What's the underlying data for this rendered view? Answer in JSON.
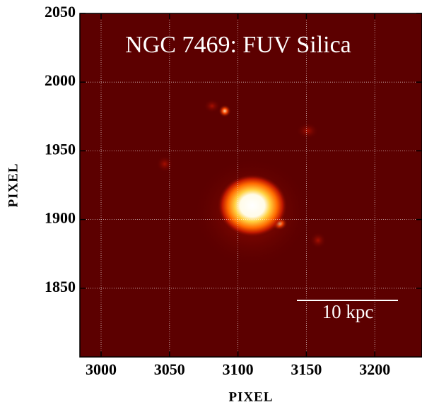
{
  "chart_data": {
    "type": "image",
    "title": "NGC 7469: FUV Silica",
    "xlabel": "PIXEL",
    "ylabel": "PIXEL",
    "xlim": [
      2984.5,
      3234.5
    ],
    "ylim": [
      1800,
      2050
    ],
    "xticks": [
      3000,
      3050,
      3100,
      3150,
      3200
    ],
    "yticks": [
      1850,
      1900,
      1950,
      2000,
      2050
    ],
    "grid": true,
    "scale_bar": "10 kpc"
  }
}
